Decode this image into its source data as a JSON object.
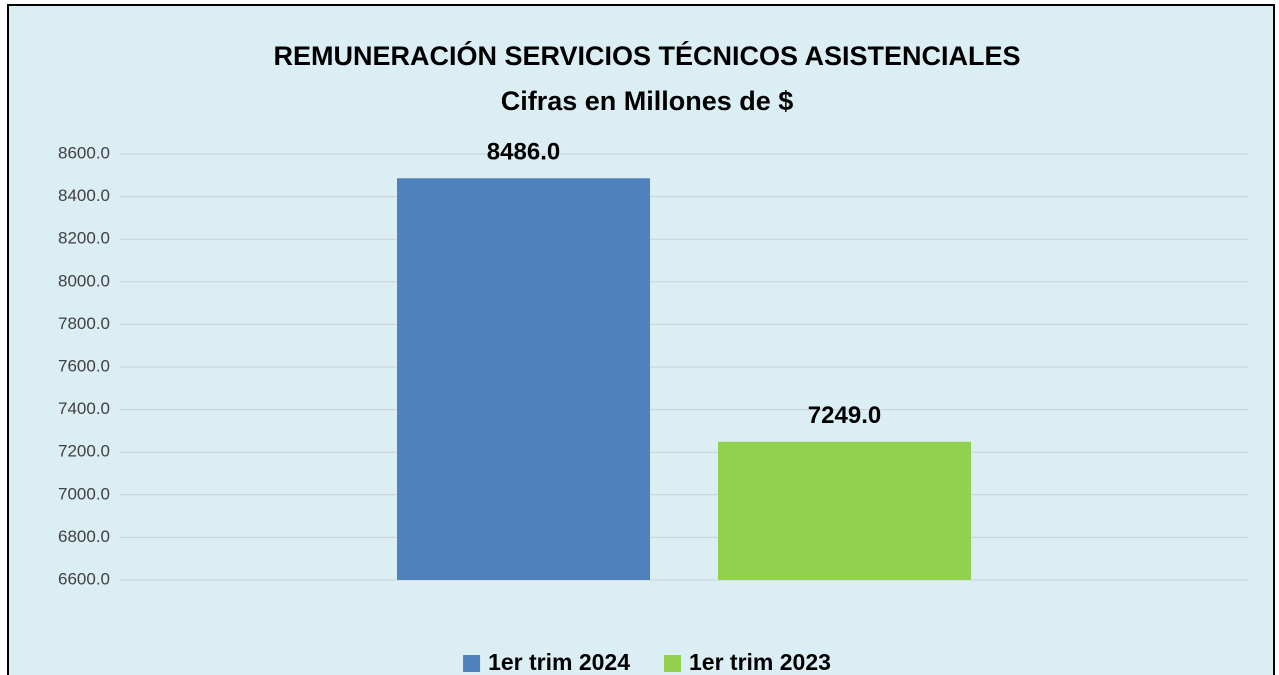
{
  "chart_data": {
    "type": "bar",
    "title": "REMUNERACIÓN SERVICIOS TÉCNICOS ASISTENCIALES",
    "subtitle": "Cifras en Millones de $",
    "categories": [
      null
    ],
    "series": [
      {
        "name": "1er trim 2024",
        "color": "#4f81bd",
        "values": [
          8486
        ],
        "value_labels": [
          "8486.0"
        ]
      },
      {
        "name": "1er trim 2023",
        "color": "#92d050",
        "values": [
          7249
        ],
        "value_labels": [
          "7249.0"
        ]
      }
    ],
    "ylim": [
      6600,
      8600
    ],
    "yticks": [
      {
        "value": 6600,
        "label": "6600.0"
      },
      {
        "value": 6800,
        "label": "6800.0"
      },
      {
        "value": 7000,
        "label": "7000.0"
      },
      {
        "value": 7200,
        "label": "7200.0"
      },
      {
        "value": 7400,
        "label": "7400.0"
      },
      {
        "value": 7600,
        "label": "7600.0"
      },
      {
        "value": 7800,
        "label": "7800.0"
      },
      {
        "value": 8000,
        "label": "8000.0"
      },
      {
        "value": 8200,
        "label": "8200.0"
      },
      {
        "value": 8400,
        "label": "8400.0"
      },
      {
        "value": 8600,
        "label": "8600.0"
      }
    ],
    "grid": true,
    "legend": "bottom"
  }
}
